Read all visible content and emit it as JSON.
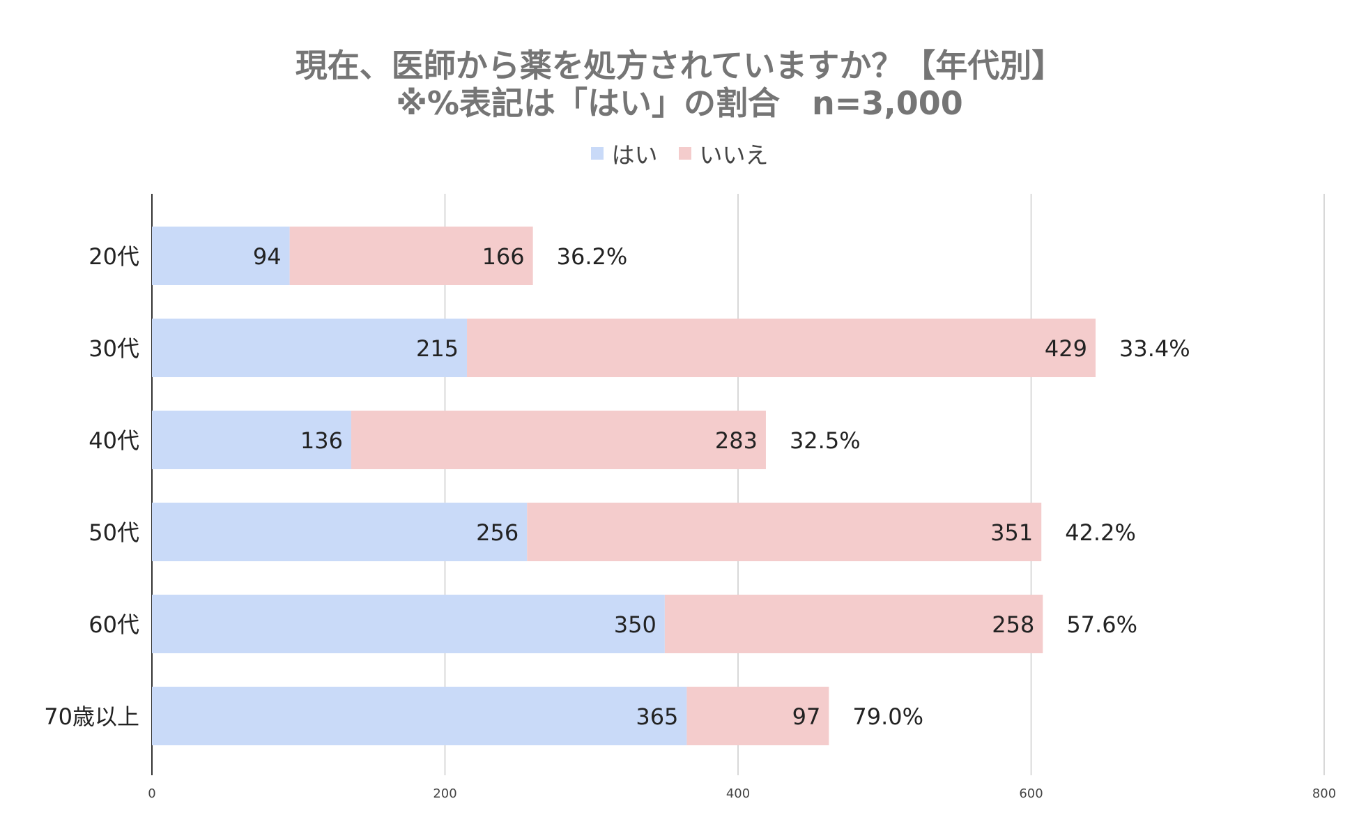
{
  "chart_data": {
    "type": "bar",
    "orientation": "horizontal",
    "stacked": true,
    "title_lines": [
      "現在、医師から薬を処方されていますか？【年代別】",
      "※%表記は「はい」の割合　n=3,000"
    ],
    "categories": [
      "20代",
      "30代",
      "40代",
      "50代",
      "60代",
      "70歳以上"
    ],
    "series": [
      {
        "name": "はい",
        "color": "#c9daf8",
        "values": [
          94,
          215,
          136,
          256,
          350,
          365
        ]
      },
      {
        "name": "いいえ",
        "color": "#f4cccc",
        "values": [
          166,
          429,
          283,
          351,
          258,
          97
        ]
      }
    ],
    "percent_labels": [
      "36.2%",
      "33.4%",
      "32.5%",
      "42.2%",
      "57.6%",
      "79.0%"
    ],
    "xlim": [
      0,
      800
    ],
    "xticks": [
      0,
      200,
      400,
      600,
      800
    ],
    "grid": true,
    "legend_position": "top-center"
  }
}
